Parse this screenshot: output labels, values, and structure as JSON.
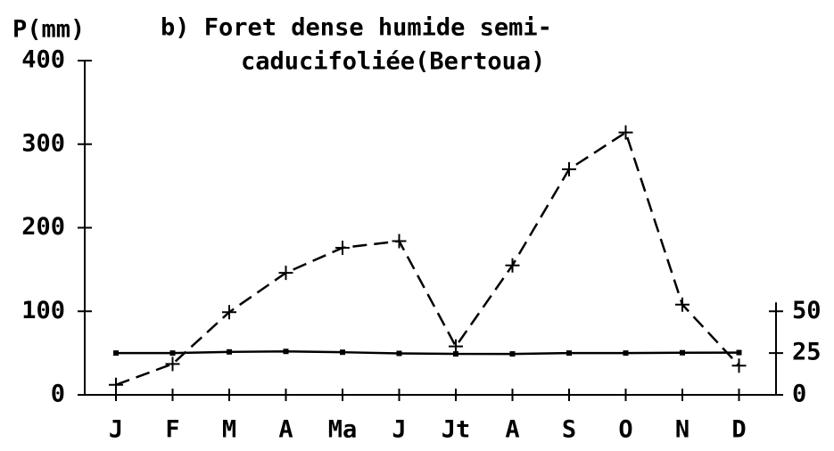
{
  "chart_data": {
    "type": "line",
    "title": [
      "b) Foret dense humide semi-",
      "caducifoliée(Bertoua)"
    ],
    "y_label": "P(mm)",
    "categories": [
      "J",
      "F",
      "M",
      "A",
      "Ma",
      "J",
      "Jt",
      "A",
      "S",
      "O",
      "N",
      "D"
    ],
    "series": [
      {
        "color": "#000000",
        "values": [
          12,
          37,
          99,
          146,
          176,
          184,
          58,
          155,
          270,
          314,
          108,
          35
        ]
      },
      {
        "color": "#000000",
        "axis": "y2",
        "values": [
          25,
          25,
          25.7,
          26,
          25.5,
          24.8,
          24.5,
          24.5,
          25,
          25,
          25.2,
          25.3
        ]
      }
    ],
    "ylim": [
      0,
      400
    ],
    "yticks": [
      0,
      100,
      200,
      300,
      400
    ],
    "y2lim": [
      0,
      200
    ],
    "y2ticks": [
      0,
      25,
      50
    ]
  }
}
